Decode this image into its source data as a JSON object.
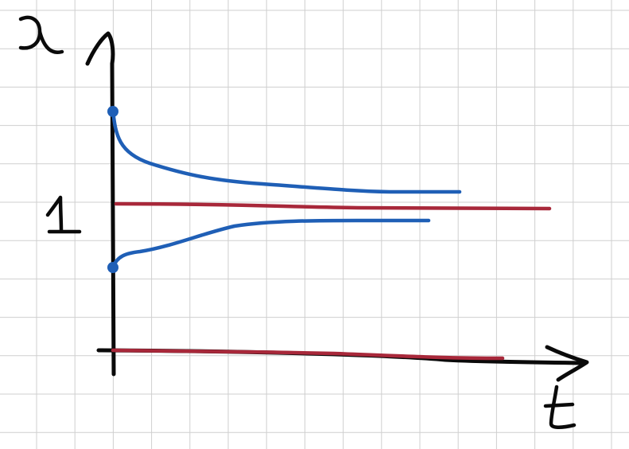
{
  "labels": {
    "vertical_axis": "x",
    "horizontal_axis": "t",
    "tick": "1"
  },
  "colors": {
    "grid": "#cfcfcf",
    "ink": "#0a0a0a",
    "blue": "#1f5fb6",
    "red": "#a8283a",
    "background": "#ffffff"
  },
  "curves": [
    {
      "kind": "solution-from-above",
      "color": "blue",
      "start_dot": true
    },
    {
      "kind": "equilibrium-at-1",
      "color": "red"
    },
    {
      "kind": "solution-from-below",
      "color": "blue",
      "start_dot": true
    },
    {
      "kind": "equilibrium-at-0",
      "color": "red"
    }
  ]
}
